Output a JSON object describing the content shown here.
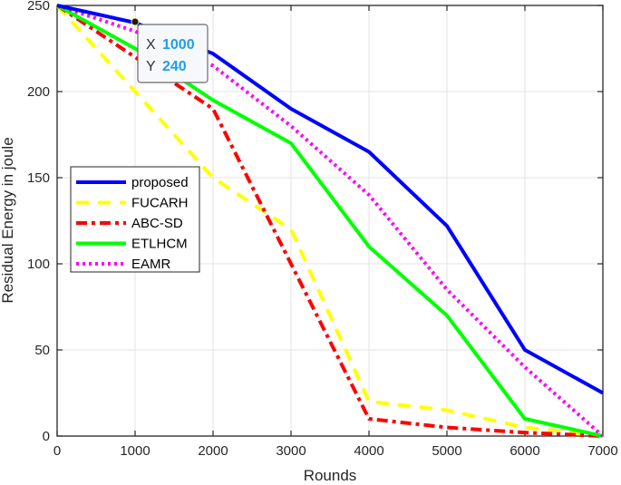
{
  "chart_data": {
    "type": "line",
    "title": "",
    "xlabel": "Rounds",
    "ylabel": "Residual Energy in joule",
    "xlim": [
      0,
      7000
    ],
    "ylim": [
      0,
      250
    ],
    "x_ticks": [
      0,
      1000,
      2000,
      3000,
      4000,
      5000,
      6000,
      7000
    ],
    "y_ticks": [
      0,
      50,
      100,
      150,
      200,
      250
    ],
    "grid": true,
    "legend_position": "center-left",
    "x": [
      0,
      1000,
      2000,
      3000,
      4000,
      5000,
      6000,
      7000
    ],
    "series": [
      {
        "name": "proposed",
        "color": "#0000ff",
        "style": "solid",
        "values": [
          250,
          240,
          222,
          190,
          165,
          122,
          50,
          25
        ]
      },
      {
        "name": "FUCARH",
        "color": "#ffff00",
        "style": "dashed",
        "values": [
          250,
          200,
          150,
          120,
          20,
          15,
          5,
          0
        ]
      },
      {
        "name": "ABC-SD",
        "color": "#ff0000",
        "style": "dashdot",
        "values": [
          250,
          220,
          190,
          100,
          10,
          5,
          2,
          0
        ]
      },
      {
        "name": "ETLHCM",
        "color": "#00ff00",
        "style": "solid",
        "values": [
          250,
          225,
          195,
          170,
          110,
          70,
          10,
          0
        ]
      },
      {
        "name": "EAMR",
        "color": "#ff00ff",
        "style": "dotted",
        "values": [
          250,
          235,
          215,
          180,
          140,
          85,
          40,
          0
        ]
      }
    ],
    "annotations": [
      {
        "type": "datatip",
        "x": 1000,
        "y": 240,
        "x_label": "X",
        "y_label": "Y",
        "x_value": "1000",
        "y_value": "240"
      }
    ]
  }
}
